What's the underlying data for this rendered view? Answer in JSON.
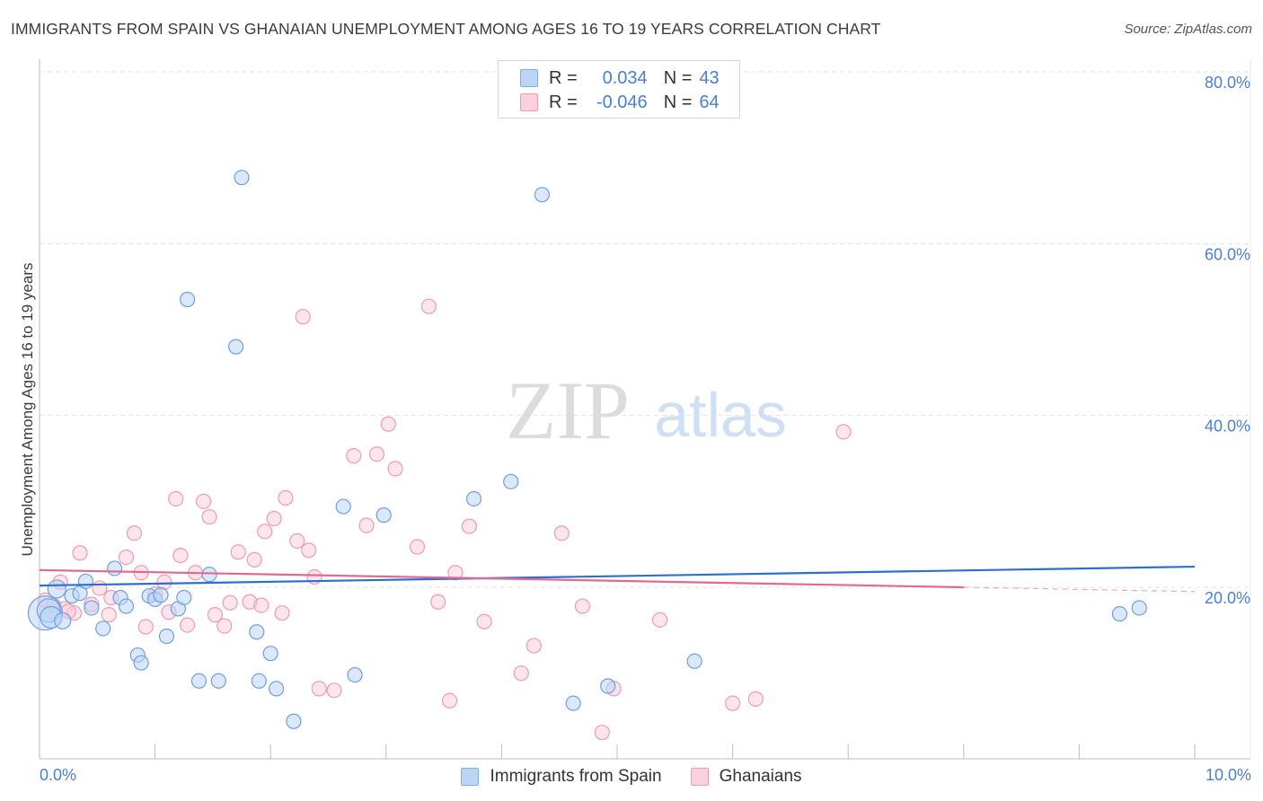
{
  "title": "IMMIGRANTS FROM SPAIN VS GHANAIAN UNEMPLOYMENT AMONG AGES 16 TO 19 YEARS CORRELATION CHART",
  "source": "Source: ZipAtlas.com",
  "watermark": {
    "zip": "ZIP",
    "atlas": "atlas"
  },
  "legend": {
    "r_label": "R =",
    "n_label": "N =",
    "rows": [
      {
        "r": "0.034",
        "n": "43",
        "color": "#7eaee8",
        "fill": "#bcd5f5"
      },
      {
        "r": "-0.046",
        "n": "64",
        "color": "#f09ab5",
        "fill": "#fbd0dd"
      }
    ]
  },
  "series_labels": [
    "Immigrants from Spain",
    "Ghanaians"
  ],
  "chart_data": {
    "type": "scatter",
    "title": "IMMIGRANTS FROM SPAIN VS GHANAIAN UNEMPLOYMENT AMONG AGES 16 TO 19 YEARS CORRELATION CHART",
    "xlabel": "",
    "ylabel": "Unemployment Among Ages 16 to 19 years",
    "xlim": [
      0,
      10
    ],
    "ylim": [
      0,
      80
    ],
    "x_tick_labels": [
      "0.0%",
      "10.0%"
    ],
    "y_ticks": [
      20,
      40,
      60,
      80
    ],
    "y_tick_labels": [
      "20.0%",
      "40.0%",
      "60.0%",
      "80.0%"
    ],
    "grid": true,
    "legend_position": "top-center",
    "series": [
      {
        "name": "Immigrants from Spain",
        "color": "#6f9fe0",
        "fill": "#bcd5f5",
        "trend": {
          "x": [
            0,
            10
          ],
          "y": [
            20.2,
            22.4
          ],
          "color": "#2d6fd0"
        },
        "points": [
          [
            0.05,
            17.0
          ],
          [
            0.08,
            17.3
          ],
          [
            0.1,
            16.5
          ],
          [
            0.15,
            19.8
          ],
          [
            0.2,
            16.1
          ],
          [
            0.28,
            19.0
          ],
          [
            0.35,
            19.3
          ],
          [
            0.4,
            20.7
          ],
          [
            0.45,
            17.6
          ],
          [
            0.55,
            15.2
          ],
          [
            0.65,
            22.2
          ],
          [
            0.7,
            18.8
          ],
          [
            0.75,
            17.8
          ],
          [
            0.85,
            12.1
          ],
          [
            0.88,
            11.2
          ],
          [
            0.95,
            19.0
          ],
          [
            1.0,
            18.6
          ],
          [
            1.05,
            19.1
          ],
          [
            1.1,
            14.3
          ],
          [
            1.2,
            17.5
          ],
          [
            1.25,
            18.8
          ],
          [
            1.28,
            53.5
          ],
          [
            1.38,
            9.1
          ],
          [
            1.47,
            21.5
          ],
          [
            1.55,
            9.1
          ],
          [
            1.7,
            48.0
          ],
          [
            1.75,
            67.7
          ],
          [
            1.88,
            14.8
          ],
          [
            1.9,
            9.1
          ],
          [
            2.0,
            12.3
          ],
          [
            2.05,
            8.2
          ],
          [
            2.2,
            4.4
          ],
          [
            2.63,
            29.4
          ],
          [
            2.73,
            9.8
          ],
          [
            2.98,
            28.4
          ],
          [
            3.76,
            30.3
          ],
          [
            4.08,
            32.3
          ],
          [
            4.35,
            65.7
          ],
          [
            4.62,
            6.5
          ],
          [
            4.92,
            8.5
          ],
          [
            5.67,
            11.4
          ],
          [
            9.35,
            16.9
          ],
          [
            9.52,
            17.6
          ]
        ],
        "sizes": [
          34,
          22,
          20,
          16,
          14,
          12,
          12,
          12,
          12,
          12,
          12,
          12,
          12,
          12,
          12,
          12,
          12,
          12,
          12,
          12,
          12,
          12,
          12,
          12,
          12,
          12,
          12,
          12,
          12,
          12,
          12,
          12,
          12,
          12,
          12,
          12,
          12,
          12,
          12,
          12,
          12,
          12,
          12
        ]
      },
      {
        "name": "Ghanaians",
        "color": "#f09ab5",
        "fill": "#fbd0dd",
        "trend": {
          "x": [
            0,
            8.0
          ],
          "y": [
            22.0,
            20.0
          ],
          "color": "#e06a92",
          "dashed_extension": [
            8.0,
            10.0
          ]
        },
        "points": [
          [
            0.05,
            18.5
          ],
          [
            0.1,
            17.2
          ],
          [
            0.18,
            20.6
          ],
          [
            0.22,
            17.5
          ],
          [
            0.3,
            17.0
          ],
          [
            0.35,
            24.0
          ],
          [
            0.45,
            18.0
          ],
          [
            0.52,
            19.9
          ],
          [
            0.6,
            16.8
          ],
          [
            0.62,
            18.8
          ],
          [
            0.75,
            23.5
          ],
          [
            0.82,
            26.3
          ],
          [
            0.88,
            21.7
          ],
          [
            0.92,
            15.4
          ],
          [
            1.0,
            19.2
          ],
          [
            1.08,
            20.6
          ],
          [
            1.12,
            17.1
          ],
          [
            1.18,
            30.3
          ],
          [
            1.22,
            23.7
          ],
          [
            1.28,
            15.6
          ],
          [
            1.35,
            21.7
          ],
          [
            1.42,
            30.0
          ],
          [
            1.47,
            28.2
          ],
          [
            1.52,
            16.8
          ],
          [
            1.6,
            15.5
          ],
          [
            1.65,
            18.2
          ],
          [
            1.72,
            24.1
          ],
          [
            1.82,
            18.3
          ],
          [
            1.86,
            23.2
          ],
          [
            1.92,
            17.9
          ],
          [
            1.95,
            26.5
          ],
          [
            2.03,
            28.0
          ],
          [
            2.1,
            17.0
          ],
          [
            2.13,
            30.4
          ],
          [
            2.23,
            25.4
          ],
          [
            2.28,
            51.5
          ],
          [
            2.33,
            24.3
          ],
          [
            2.38,
            21.2
          ],
          [
            2.42,
            8.2
          ],
          [
            2.55,
            8.0
          ],
          [
            2.72,
            35.3
          ],
          [
            2.83,
            27.2
          ],
          [
            2.92,
            35.5
          ],
          [
            3.02,
            39.0
          ],
          [
            3.08,
            33.8
          ],
          [
            3.27,
            24.7
          ],
          [
            3.37,
            52.7
          ],
          [
            3.45,
            18.3
          ],
          [
            3.55,
            6.8
          ],
          [
            3.6,
            21.7
          ],
          [
            3.72,
            27.1
          ],
          [
            3.85,
            16.0
          ],
          [
            4.17,
            10.0
          ],
          [
            4.28,
            13.2
          ],
          [
            4.52,
            26.3
          ],
          [
            4.7,
            17.8
          ],
          [
            4.87,
            3.1
          ],
          [
            4.97,
            8.2
          ],
          [
            5.37,
            16.2
          ],
          [
            6.0,
            6.5
          ],
          [
            6.2,
            7.0
          ],
          [
            6.96,
            38.1
          ],
          [
            0.12,
            17.9
          ],
          [
            0.25,
            17.2
          ]
        ],
        "sizes": [
          12,
          12,
          12,
          12,
          12,
          12,
          12,
          12,
          12,
          12,
          12,
          12,
          12,
          12,
          12,
          12,
          12,
          12,
          12,
          12,
          12,
          12,
          12,
          12,
          12,
          12,
          12,
          12,
          12,
          12,
          12,
          12,
          12,
          12,
          12,
          12,
          12,
          12,
          12,
          12,
          12,
          12,
          12,
          12,
          12,
          12,
          12,
          12,
          12,
          12,
          12,
          12,
          12,
          12,
          12,
          12,
          12,
          12,
          12,
          12,
          12,
          12,
          12,
          12
        ]
      }
    ]
  }
}
